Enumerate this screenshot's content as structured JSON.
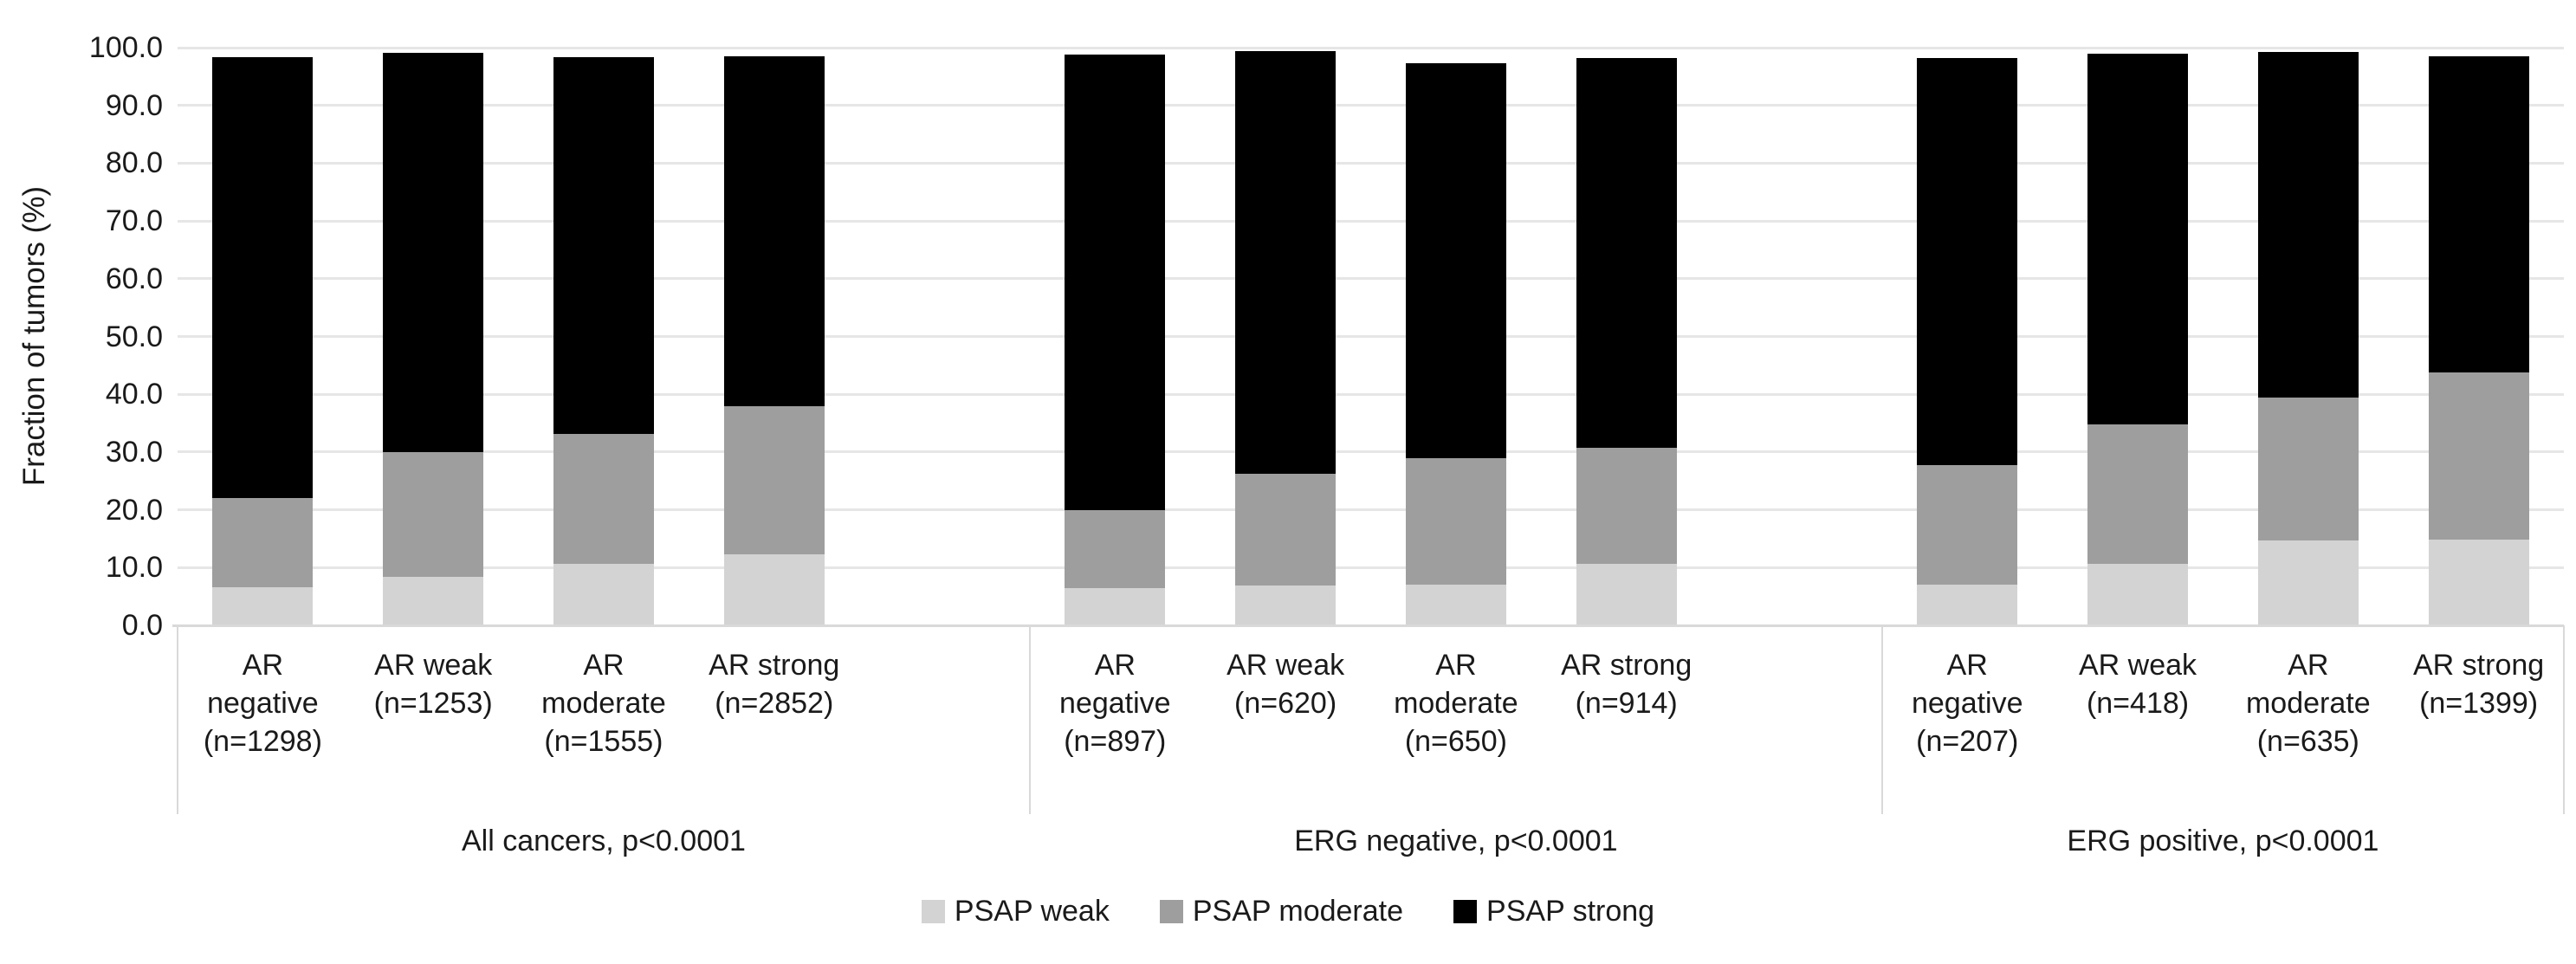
{
  "chart_data": {
    "type": "bar",
    "variant": "stacked-vertical",
    "ylabel": "Fraction of tumors (%)",
    "ylim": [
      0,
      100
    ],
    "ytick_step": 10,
    "ytick_labels": [
      "0.0",
      "10.0",
      "20.0",
      "30.0",
      "40.0",
      "50.0",
      "60.0",
      "70.0",
      "80.0",
      "90.0",
      "100.0"
    ],
    "grid": "horizontal",
    "legend_position": "bottom-center",
    "series_order_bottom_to_top": [
      "PSAP weak",
      "PSAP moderate",
      "PSAP strong"
    ],
    "legend": [
      {
        "name": "PSAP weak",
        "color": "#d3d3d3"
      },
      {
        "name": "PSAP moderate",
        "color": "#9e9e9e"
      },
      {
        "name": "PSAP strong",
        "color": "#000000"
      }
    ],
    "groups": [
      {
        "title": "All cancers, p<0.0001",
        "bars": [
          {
            "label": "AR negative (n=1298)",
            "values": [
              6.6,
              15.4,
              76.4
            ]
          },
          {
            "label": "AR weak (n=1253)",
            "values": [
              8.4,
              21.6,
              69.1
            ]
          },
          {
            "label": "AR moderate (n=1555)",
            "values": [
              10.6,
              22.6,
              65.1
            ]
          },
          {
            "label": "AR strong (n=2852)",
            "values": [
              12.3,
              25.7,
              60.5
            ]
          }
        ]
      },
      {
        "title": "ERG negative, p<0.0001",
        "bars": [
          {
            "label": "AR negative (n=897)",
            "values": [
              6.4,
              13.5,
              78.9
            ]
          },
          {
            "label": "AR weak (n=620)",
            "values": [
              6.9,
              19.4,
              73.1
            ]
          },
          {
            "label": "AR moderate (n=650)",
            "values": [
              7.0,
              21.9,
              68.4
            ]
          },
          {
            "label": "AR strong (n=914)",
            "values": [
              10.6,
              20.1,
              67.5
            ]
          }
        ]
      },
      {
        "title": "ERG positive, p<0.0001",
        "bars": [
          {
            "label": "AR negative (n=207)",
            "values": [
              7.0,
              20.8,
              70.4
            ]
          },
          {
            "label": "AR weak (n=418)",
            "values": [
              10.7,
              24.1,
              64.1
            ]
          },
          {
            "label": "AR moderate (n=635)",
            "values": [
              14.7,
              24.8,
              59.8
            ]
          },
          {
            "label": "AR strong (n=1399)",
            "values": [
              14.9,
              28.9,
              54.7
            ]
          }
        ]
      }
    ]
  }
}
